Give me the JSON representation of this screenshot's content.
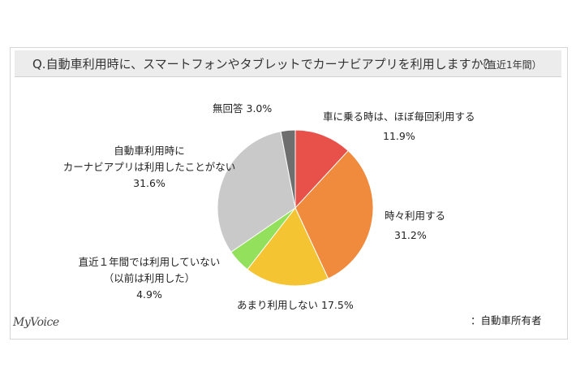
{
  "header": {
    "title": "Q.自動車利用時に、スマートフォンやタブレットでカーナビアプリを利用しますか？",
    "period": "（直近1年間）"
  },
  "chart_data": {
    "type": "pie",
    "slices": [
      {
        "label": "車に乗る時は、ほぼ毎回利用する",
        "value": 11.9,
        "value_label": "11.9%",
        "color": "#e8504a"
      },
      {
        "label": "時々利用する",
        "value": 31.2,
        "value_label": "31.2%",
        "color": "#f08a3c"
      },
      {
        "label": "あまり利用しない",
        "value": 17.5,
        "value_label": "17.5%",
        "color": "#f5c433"
      },
      {
        "label_lines": [
          "直近１年間では利用していない",
          "（以前は利用した）"
        ],
        "value": 4.9,
        "value_label": "4.9%",
        "color": "#93e05c"
      },
      {
        "label_lines": [
          "自動車利用時に",
          "カーナビアプリは利用したことがない"
        ],
        "value": 31.6,
        "value_label": "31.6%",
        "color": "#c9c9c9"
      },
      {
        "label": "無回答",
        "value": 3.0,
        "value_label": "3.0%",
        "color": "#6e6e6e"
      }
    ]
  },
  "footer": {
    "brand": "MyVoice",
    "base_note": "：自動車所有者"
  }
}
